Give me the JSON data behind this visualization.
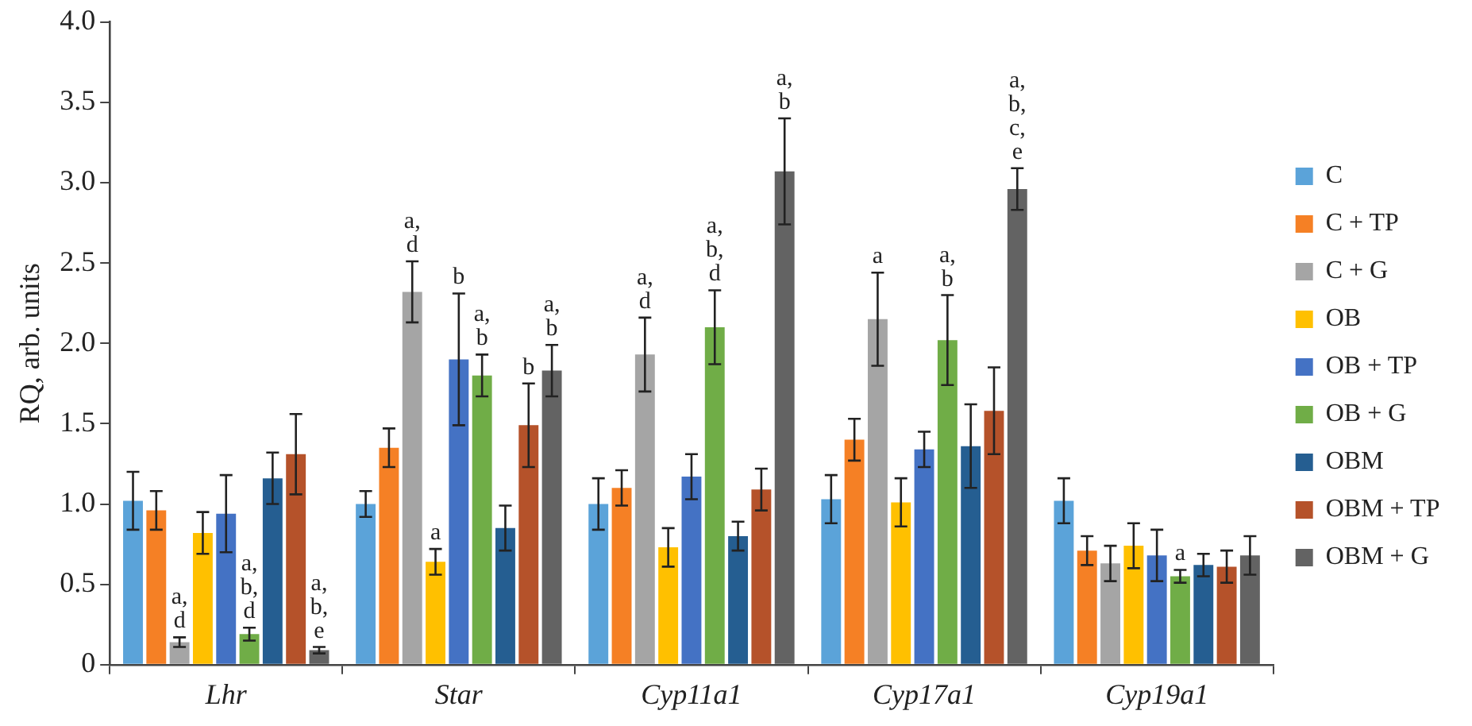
{
  "chart_data": {
    "type": "bar",
    "ylabel": "RQ, arb. units",
    "categories": [
      "Lhr",
      "Star",
      "Cyp11a1",
      "Cyp17a1",
      "Cyp19a1"
    ],
    "series": [
      {
        "name": "C",
        "color": "#5ba3d9",
        "values": [
          1.02,
          1.0,
          1.0,
          1.03,
          1.02
        ],
        "errors": [
          0.18,
          0.08,
          0.16,
          0.15,
          0.14
        ]
      },
      {
        "name": "C + TP",
        "color": "#f58025",
        "values": [
          0.96,
          1.35,
          1.1,
          1.4,
          0.71
        ],
        "errors": [
          0.12,
          0.12,
          0.11,
          0.13,
          0.09
        ]
      },
      {
        "name": "C + G",
        "color": "#a5a5a5",
        "values": [
          0.14,
          2.32,
          1.93,
          2.15,
          0.63
        ],
        "errors": [
          0.03,
          0.19,
          0.23,
          0.29,
          0.11
        ],
        "value_labels": [
          "a,\nd",
          "a,\nd",
          "a,\nd",
          "a",
          null
        ]
      },
      {
        "name": "OB",
        "color": "#ffc000",
        "values": [
          0.82,
          0.64,
          0.73,
          1.01,
          0.74
        ],
        "errors": [
          0.13,
          0.08,
          0.12,
          0.15,
          0.14
        ],
        "value_labels": [
          null,
          "a",
          null,
          null,
          null
        ]
      },
      {
        "name": "OB + TP",
        "color": "#4472c4",
        "values": [
          0.94,
          1.9,
          1.17,
          1.34,
          0.68
        ],
        "errors": [
          0.24,
          0.41,
          0.14,
          0.11,
          0.16
        ],
        "value_labels": [
          null,
          "b",
          null,
          null,
          null
        ]
      },
      {
        "name": "OB + G",
        "color": "#70ad47",
        "values": [
          0.19,
          1.8,
          2.1,
          2.02,
          0.55
        ],
        "errors": [
          0.04,
          0.13,
          0.23,
          0.28,
          0.04
        ],
        "value_labels": [
          "a,\nb,\nd",
          "a,\nb",
          "a,\nb,\nd",
          "a,\nb",
          "a"
        ]
      },
      {
        "name": "OBM",
        "color": "#255e91",
        "values": [
          1.16,
          0.85,
          0.8,
          1.36,
          0.62
        ],
        "errors": [
          0.16,
          0.14,
          0.09,
          0.26,
          0.07
        ]
      },
      {
        "name": "OBM + TP",
        "color": "#b5522a",
        "values": [
          1.31,
          1.49,
          1.09,
          1.58,
          0.61
        ],
        "errors": [
          0.25,
          0.26,
          0.13,
          0.27,
          0.1
        ],
        "value_labels": [
          null,
          "b",
          null,
          null,
          null
        ]
      },
      {
        "name": "OBM + G",
        "color": "#636363",
        "values": [
          0.09,
          1.83,
          3.07,
          2.96,
          0.68
        ],
        "errors": [
          0.02,
          0.16,
          0.33,
          0.13,
          0.12
        ],
        "value_labels": [
          "a,\nb,\ne",
          "a,\nb",
          "a,\nb",
          "a,\nb,\nc,\ne",
          null
        ]
      }
    ],
    "ylim": [
      0,
      4
    ],
    "yticks": [
      0,
      0.5,
      {
        "value": 1,
        "label": "1.0"
      },
      1.5,
      {
        "value": 2,
        "label": "2.0"
      },
      2.5,
      {
        "value": 3,
        "label": "3.0"
      },
      3.5,
      {
        "value": 4,
        "label": "4.0"
      }
    ],
    "grid": false,
    "legend": "right"
  }
}
